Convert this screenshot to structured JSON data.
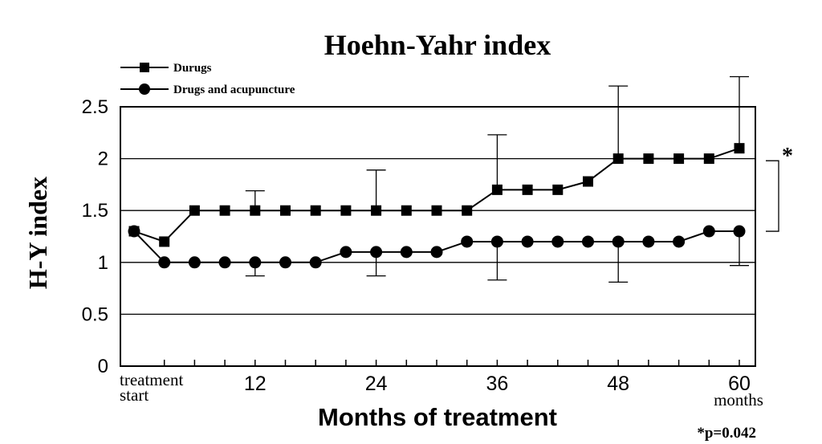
{
  "chart_data": {
    "type": "line",
    "title": "Hoehn-Yahr index",
    "xlabel": "Months of treatment",
    "ylabel": "H-Y index",
    "ylim": [
      0,
      2.5
    ],
    "yticks": [
      "0",
      "0.5",
      "1",
      "1.5",
      "2",
      "2.5"
    ],
    "xtick_labels": [
      {
        "label": "treatment",
        "label2": "start",
        "x": 0
      },
      {
        "label": "12",
        "x": 12
      },
      {
        "label": "24",
        "x": 24
      },
      {
        "label": "36",
        "x": 36
      },
      {
        "label": "48",
        "x": 48
      },
      {
        "label": "60",
        "label2": "months",
        "x": 60
      }
    ],
    "x": [
      0,
      3,
      6,
      9,
      12,
      15,
      18,
      21,
      24,
      27,
      30,
      33,
      36,
      39,
      42,
      45,
      48,
      51,
      54,
      57,
      60
    ],
    "grid": "horizontal",
    "legend_position": "top-left",
    "series": [
      {
        "name": "Durugs",
        "marker": "square",
        "values": [
          1.3,
          1.2,
          1.5,
          1.5,
          1.5,
          1.5,
          1.5,
          1.5,
          1.5,
          1.5,
          1.5,
          1.5,
          1.7,
          1.7,
          1.7,
          1.78,
          2.0,
          2.0,
          2.0,
          2.0,
          2.1
        ],
        "error_upper": [
          {
            "x": 12,
            "y": 1.69
          },
          {
            "x": 24,
            "y": 1.89
          },
          {
            "x": 36,
            "y": 2.23
          },
          {
            "x": 48,
            "y": 2.7
          },
          {
            "x": 60,
            "y": 2.79
          }
        ]
      },
      {
        "name": "Drugs and acupuncture",
        "marker": "circle",
        "values": [
          1.3,
          1.0,
          1.0,
          1.0,
          1.0,
          1.0,
          1.0,
          1.1,
          1.1,
          1.1,
          1.1,
          1.2,
          1.2,
          1.2,
          1.2,
          1.2,
          1.2,
          1.2,
          1.2,
          1.3,
          1.3
        ],
        "error_lower": [
          {
            "x": 12,
            "y": 0.87
          },
          {
            "x": 24,
            "y": 0.87
          },
          {
            "x": 36,
            "y": 0.83
          },
          {
            "x": 48,
            "y": 0.81
          },
          {
            "x": 60,
            "y": 0.97
          }
        ]
      }
    ],
    "significance": {
      "marker": "*",
      "footnote": "*p=0.042",
      "range": [
        1.3,
        2.1
      ]
    }
  }
}
